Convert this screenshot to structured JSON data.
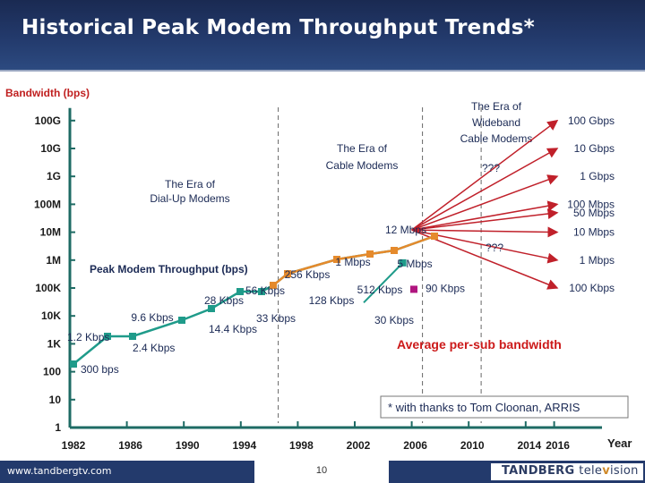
{
  "slide": {
    "title": "Historical Peak Modem Throughput Trends*",
    "footer_url": "www.tandbergtv.com",
    "page_number": "10",
    "logo_main": "TANDBERG",
    "logo_sub_a": "tele",
    "logo_mark": "v",
    "logo_sub_b": "ision",
    "colors": {
      "header": "#233a6c",
      "peak_line": "#e58a2c",
      "peak_marker": "#e58a2c",
      "avg_line": "#1f9b8a",
      "avg_marker": "#1f9b8a",
      "purple_marker": "#b0157f",
      "projection": "#c0202a",
      "avg_label": "#cc1a1a"
    }
  },
  "chart_data": {
    "type": "line",
    "ylabel": "Bandwidth (bps)",
    "xlabel": "Year",
    "y_scale": "log",
    "y_range": [
      1,
      100000000000
    ],
    "x_range": [
      1982,
      2016
    ],
    "y_ticks": [
      "1",
      "10",
      "100",
      "1K",
      "10K",
      "100K",
      "1M",
      "10M",
      "100M",
      "1G",
      "10G",
      "100G"
    ],
    "x_ticks": [
      "1982",
      "1986",
      "1990",
      "1994",
      "1998",
      "2002",
      "2006",
      "2010",
      "2014",
      "2016"
    ],
    "eras": [
      {
        "label": "The Era of Dial-Up Modems",
        "line1": "The Era of",
        "line2": "Dial-Up Modems",
        "start": 1996
      },
      {
        "label": "The Era of Cable Modems",
        "line1": "The Era of",
        "line2": "Cable Modems",
        "start": 2006
      },
      {
        "label": "The Era of Wideband Cable Modems",
        "line1": "The Era of",
        "line2": "Wideband",
        "line3": "Cable Modems",
        "start": 2011
      }
    ],
    "series": [
      {
        "name": "Peak Modem Throughput (bps)",
        "points": [
          {
            "x": 1982,
            "y": 300,
            "label": "300 bps"
          },
          {
            "x": 1984,
            "y": 1200,
            "label": "1.2 Kbps"
          },
          {
            "x": 1986,
            "y": 2400,
            "label": "2.4 Kbps"
          },
          {
            "x": 1988,
            "y": 9600,
            "label": "9.6 Kbps"
          },
          {
            "x": 1991,
            "y": 14400,
            "label": "14.4 Kbps"
          },
          {
            "x": 1993,
            "y": 28000,
            "label": "28 Kbps"
          },
          {
            "x": 1995,
            "y": 33000,
            "label": "33 Kbps"
          },
          {
            "x": 1996.5,
            "y": 56000,
            "label": "56 Kbps"
          },
          {
            "x": 1997,
            "y": 128000,
            "label": "128 Kbps"
          },
          {
            "x": 1998.5,
            "y": 256000,
            "label": "256 Kbps"
          },
          {
            "x": 1999.5,
            "y": 1000000,
            "label": "1 Mbps"
          },
          {
            "x": 2003,
            "y": 5000000,
            "label": "5 Mbps"
          },
          {
            "x": 2006,
            "y": 12000000,
            "label": "12 Mbps"
          }
        ]
      },
      {
        "name": "Average per-sub bandwidth",
        "points": [
          {
            "x": 2002,
            "y": 30000,
            "label": "30 Kbps"
          },
          {
            "x": 2002.5,
            "y": 512000,
            "label": "512 Kbps"
          }
        ]
      }
    ],
    "purple_point": {
      "x": 2003.5,
      "y": 90000,
      "label": "90 Kbps"
    },
    "projections_from_2006": [
      {
        "target": "10 Mbps",
        "y": 10000000
      },
      {
        "target": "50 Mbps",
        "y": 50000000
      },
      {
        "target": "100 Mbps",
        "y": 100000000
      },
      {
        "target": "1 Gbps",
        "y": 1000000000
      },
      {
        "target": "10 Gbps",
        "y": 10000000000
      },
      {
        "target": "100 Gbps",
        "y": 100000000000
      },
      {
        "target": "1 Mbps",
        "y": 1000000
      },
      {
        "target": "100 Kbps",
        "y": 100000
      }
    ],
    "projection_labels": [
      {
        "text": "100 Gbps",
        "y": 100000000000
      },
      {
        "text": "10 Gbps",
        "y": 10000000000
      },
      {
        "text": "1 Gbps",
        "y": 1000000000
      },
      {
        "text": "100 Mbps",
        "y": 100000000
      },
      {
        "text": "50 Mbps",
        "y": 50000000
      },
      {
        "text": "10 Mbps",
        "y": 10000000
      },
      {
        "text": "1 Mbps",
        "y": 1000000
      },
      {
        "text": "100 Kbps",
        "y": 100000
      }
    ],
    "unknown_labels": [
      "???",
      "???"
    ],
    "series_label": "Peak Modem Throughput (bps)",
    "avg_label": "Average per-sub bandwidth",
    "note": "* with thanks to Tom Cloonan, ARRIS"
  }
}
